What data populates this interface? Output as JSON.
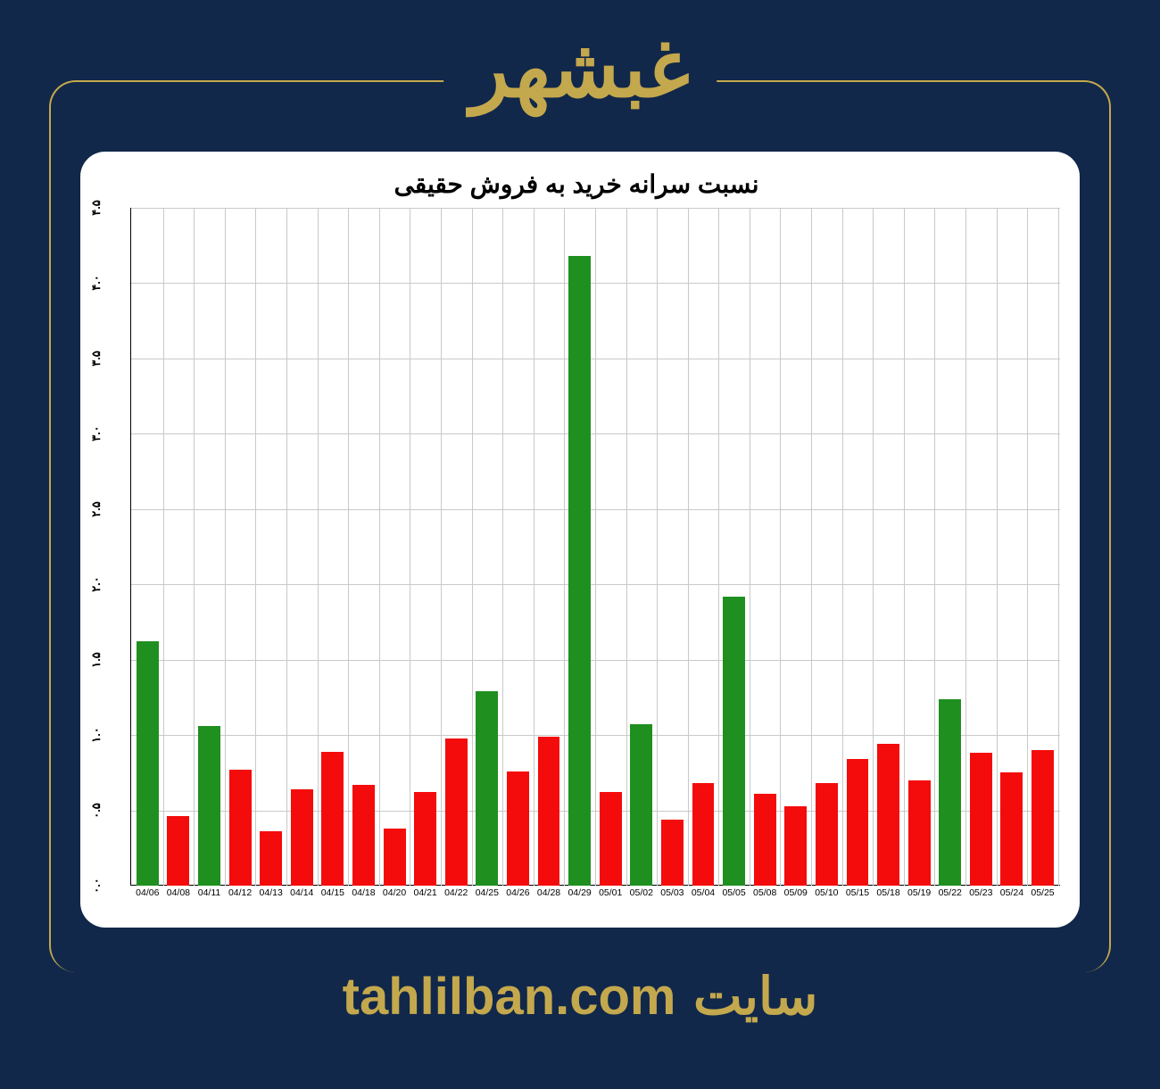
{
  "header": {
    "title": "غبشهر"
  },
  "footer": {
    "label": "سایت",
    "url": "tahlilban.com"
  },
  "chart": {
    "type": "bar",
    "title": "نسبت سرانه خرید به فروش حقیقی",
    "title_fontsize": 28,
    "background_color": "#ffffff",
    "grid_color": "#c9c9c9",
    "axis_color": "#000000",
    "ylim": [
      0.0,
      4.5
    ],
    "ytick_step": 0.5,
    "yticks": [
      "۰.۰",
      "۰.۵",
      "۱.۰",
      "۱.۵",
      "۲.۰",
      "۲.۵",
      "۳.۰",
      "۳.۵",
      "۴.۰",
      "۴.۵"
    ],
    "bar_width": 0.72,
    "color_positive": "#1f8f1f",
    "color_negative": "#f40b0b",
    "categories": [
      "04/06",
      "04/08",
      "04/11",
      "04/12",
      "04/13",
      "04/14",
      "04/15",
      "04/18",
      "04/20",
      "04/21",
      "04/22",
      "04/25",
      "04/26",
      "04/28",
      "04/29",
      "05/01",
      "05/02",
      "05/03",
      "05/04",
      "05/05",
      "05/08",
      "05/09",
      "05/10",
      "05/15",
      "05/18",
      "05/19",
      "05/22",
      "05/23",
      "05/24",
      "05/25"
    ],
    "values": [
      1.62,
      0.46,
      1.06,
      0.77,
      0.36,
      0.64,
      0.89,
      0.67,
      0.38,
      0.62,
      0.98,
      1.29,
      0.76,
      0.99,
      4.18,
      0.62,
      1.07,
      0.44,
      0.68,
      1.92,
      0.61,
      0.53,
      0.68,
      0.84,
      0.94,
      0.7,
      1.24,
      0.88,
      0.75,
      0.9
    ],
    "bar_colors": [
      "#1f8f1f",
      "#f40b0b",
      "#1f8f1f",
      "#f40b0b",
      "#f40b0b",
      "#f40b0b",
      "#f40b0b",
      "#f40b0b",
      "#f40b0b",
      "#f40b0b",
      "#f40b0b",
      "#1f8f1f",
      "#f40b0b",
      "#f40b0b",
      "#1f8f1f",
      "#f40b0b",
      "#1f8f1f",
      "#f40b0b",
      "#f40b0b",
      "#1f8f1f",
      "#f40b0b",
      "#f40b0b",
      "#f40b0b",
      "#f40b0b",
      "#f40b0b",
      "#f40b0b",
      "#1f8f1f",
      "#f40b0b",
      "#f40b0b",
      "#f40b0b"
    ]
  },
  "page": {
    "bg_color": "#11284a",
    "accent_color": "#c4a84d"
  }
}
